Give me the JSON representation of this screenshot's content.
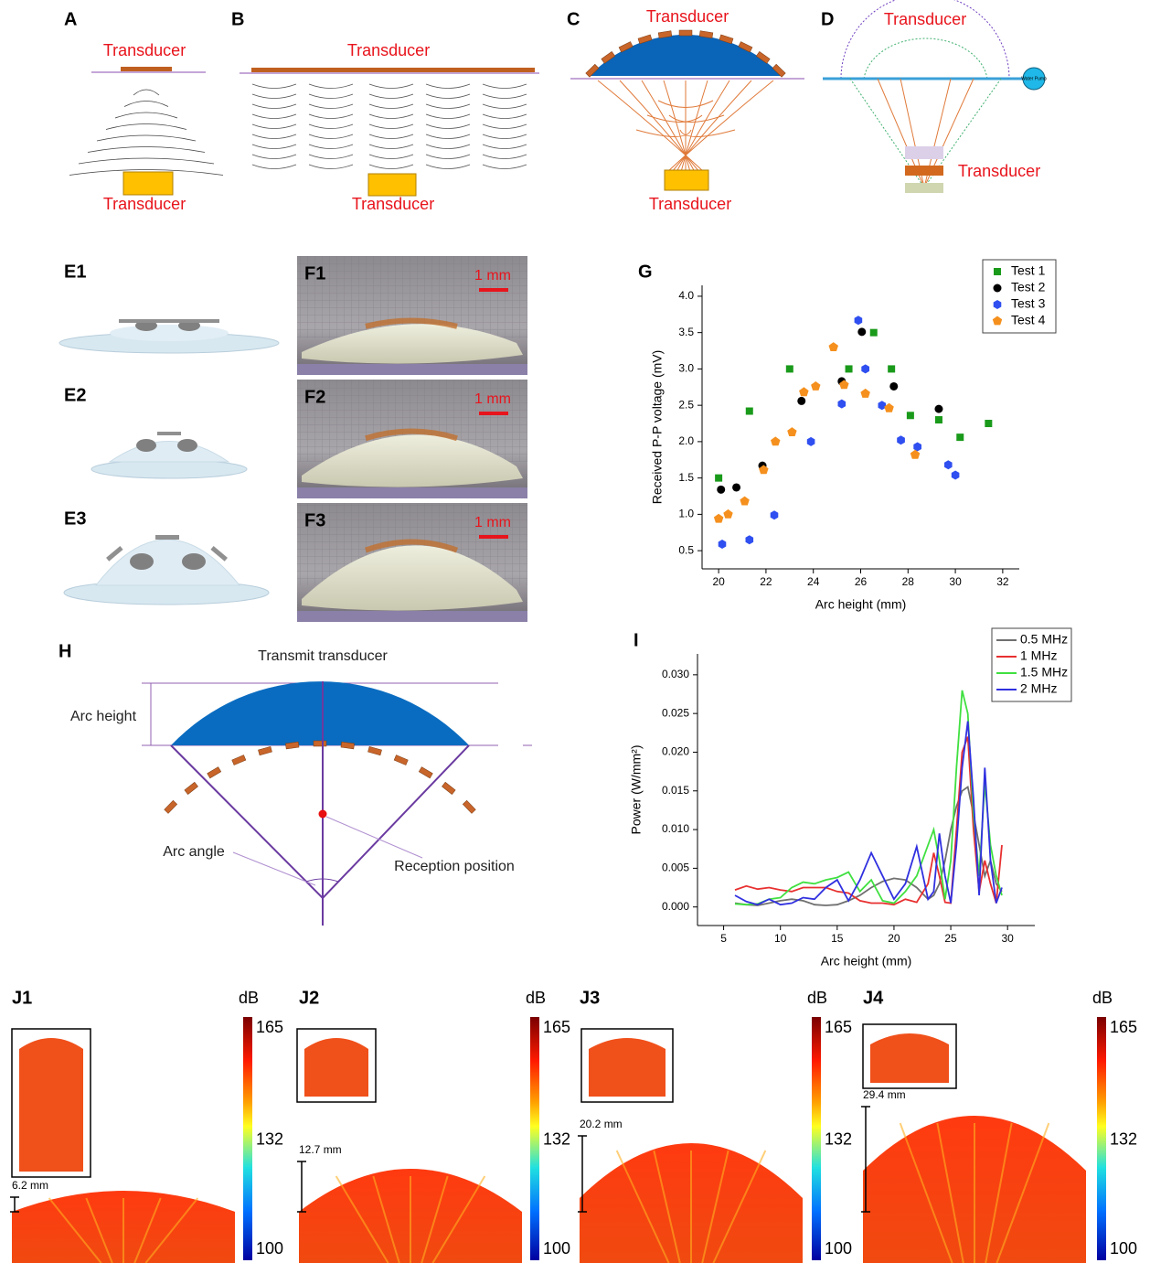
{
  "schematics": [
    {
      "label": "A",
      "top": "Transducer",
      "bottom": "Transducer"
    },
    {
      "label": "B",
      "top": "Transducer",
      "bottom": "Transducer"
    },
    {
      "label": "C",
      "top": "Transducer",
      "bottom": "Transducer"
    },
    {
      "label": "D",
      "top": "Transducer",
      "side": "Transducer",
      "pump": "Water Pump"
    }
  ],
  "models": [
    "E1",
    "E2",
    "E3"
  ],
  "photos": [
    {
      "label": "F1",
      "scale": "1 mm"
    },
    {
      "label": "F2",
      "scale": "1 mm"
    },
    {
      "label": "F3",
      "scale": "1 mm"
    }
  ],
  "diagram": {
    "label": "H",
    "title": "Transmit transducer",
    "arc_height": "Arc height",
    "arc_angle": "Arc angle",
    "reception": "Reception position"
  },
  "simulations": [
    {
      "label": "J1",
      "unit": "dB",
      "colorbar_ticks": [
        165,
        132,
        100
      ],
      "distance": "6.2 mm"
    },
    {
      "label": "J2",
      "unit": "dB",
      "colorbar_ticks": [
        165,
        132,
        100
      ],
      "distance": "12.7 mm"
    },
    {
      "label": "J3",
      "unit": "dB",
      "colorbar_ticks": [
        165,
        132,
        100
      ],
      "distance": "20.2 mm"
    },
    {
      "label": "J4",
      "unit": "dB",
      "colorbar_ticks": [
        165,
        132,
        100
      ],
      "distance": "29.4 mm"
    }
  ],
  "chart_data": [
    {
      "type": "scatter",
      "label": "G",
      "x_label": "Arc height (mm)",
      "y_label": "Received P-P voltage (mV)",
      "xlim": [
        19.3,
        32.7
      ],
      "ylim": [
        0.25,
        4.15
      ],
      "xticks": [
        20,
        22,
        24,
        26,
        28,
        30,
        32
      ],
      "yticks": [
        0.5,
        {
          "value": 1,
          "label": "1.0"
        },
        1.5,
        {
          "value": 2,
          "label": "2.0"
        },
        2.5,
        {
          "value": 3,
          "label": "3.0"
        },
        3.5,
        {
          "value": 4,
          "label": "4.0"
        }
      ],
      "legend": "upper right",
      "series": [
        {
          "name": "Test 1",
          "color": "#1a9a1a",
          "marker": "square",
          "x": [
            20.0,
            21.3,
            23.0,
            25.5,
            26.55,
            27.3,
            28.1,
            29.3,
            30.2,
            31.4
          ],
          "values": [
            1.5,
            2.42,
            3.0,
            3.0,
            3.5,
            3.0,
            2.36,
            2.3,
            2.06,
            2.25
          ]
        },
        {
          "name": "Test 2",
          "color": "#000000",
          "marker": "circle",
          "x": [
            20.1,
            20.75,
            21.85,
            23.5,
            25.2,
            26.05,
            27.4,
            29.3
          ],
          "values": [
            1.34,
            1.37,
            1.67,
            2.56,
            2.83,
            3.51,
            2.76,
            2.45
          ]
        },
        {
          "name": "Test 3",
          "color": "#2f4ff0",
          "marker": "hexagon",
          "x": [
            20.15,
            21.3,
            22.35,
            23.9,
            25.2,
            25.9,
            26.2,
            26.9,
            27.7,
            28.4,
            29.7,
            30.0
          ],
          "values": [
            0.59,
            0.65,
            0.99,
            2.0,
            2.52,
            3.67,
            3.0,
            2.5,
            2.02,
            1.93,
            1.68,
            1.54
          ]
        },
        {
          "name": "Test 4",
          "color": "#f5901e",
          "marker": "pentagon",
          "x": [
            20.0,
            20.4,
            21.1,
            21.9,
            22.4,
            23.1,
            23.6,
            24.1,
            24.85,
            25.3,
            26.2,
            27.2,
            28.3
          ],
          "values": [
            0.94,
            1.0,
            1.18,
            1.61,
            2.0,
            2.13,
            2.68,
            2.76,
            3.3,
            2.78,
            2.66,
            2.46,
            1.82
          ]
        }
      ]
    },
    {
      "type": "line",
      "label": "I",
      "x_label": "Arc height (mm)",
      "y_label": "Power (W/mm²)",
      "xlim": [
        2.7,
        32.4
      ],
      "ylim": [
        -0.0024,
        0.0327
      ],
      "xticks": [
        5,
        10,
        15,
        20,
        25,
        30
      ],
      "yticks": [
        {
          "value": 0,
          "label": "0.000"
        },
        {
          "value": 0.005,
          "label": "0.005"
        },
        {
          "value": 0.01,
          "label": "0.010"
        },
        {
          "value": 0.015,
          "label": "0.015"
        },
        {
          "value": 0.02,
          "label": "0.020"
        },
        {
          "value": 0.025,
          "label": "0.025"
        },
        {
          "value": 0.03,
          "label": "0.030"
        }
      ],
      "legend": "upper right",
      "x": [
        6,
        7,
        8,
        9,
        10,
        11,
        12,
        13,
        14,
        15,
        16,
        17,
        18,
        19,
        20,
        21,
        22,
        23,
        23.5,
        24,
        24.5,
        25,
        25.5,
        26,
        26.5,
        27,
        27.5,
        28,
        28.5,
        29,
        29.5
      ],
      "series": [
        {
          "name": "0.5 MHz",
          "color": "#707070",
          "values": [
            0.0005,
            0.0003,
            0.0002,
            0.0005,
            0.0008,
            0.001,
            0.0008,
            0.0003,
            0.0002,
            0.0003,
            0.0008,
            0.0015,
            0.0025,
            0.0033,
            0.0037,
            0.0035,
            0.0025,
            0.001,
            0.0015,
            0.003,
            0.006,
            0.01,
            0.013,
            0.015,
            0.0155,
            0.012,
            0.008,
            0.004,
            0.006,
            0.003,
            0.002
          ]
        },
        {
          "name": "1 MHz",
          "color": "#e83030",
          "values": [
            0.0022,
            0.0027,
            0.0023,
            0.0025,
            0.0022,
            0.002,
            0.0025,
            0.0025,
            0.0025,
            0.002,
            0.0018,
            0.0008,
            0.0005,
            0.0005,
            0.0003,
            0.001,
            0.0006,
            0.003,
            0.007,
            0.004,
            0.0006,
            0.0005,
            0.01,
            0.02,
            0.022,
            0.01,
            0.002,
            0.006,
            0.003,
            0.0005,
            0.008
          ]
        },
        {
          "name": "1.5 MHz",
          "color": "#40e040",
          "values": [
            0.0004,
            0.0003,
            0.0004,
            0.001,
            0.0012,
            0.0025,
            0.0032,
            0.003,
            0.0035,
            0.0038,
            0.0045,
            0.002,
            0.0035,
            0.0008,
            0.0005,
            0.002,
            0.004,
            0.008,
            0.01,
            0.006,
            0.001,
            0.006,
            0.018,
            0.028,
            0.025,
            0.012,
            0.004,
            0.016,
            0.008,
            0.004,
            0.0015
          ]
        },
        {
          "name": "2 MHz",
          "color": "#3030e0",
          "values": [
            0.0015,
            0.0007,
            0.0003,
            0.001,
            0.0003,
            0.0005,
            0.0012,
            0.001,
            0.0025,
            0.0035,
            0.0008,
            0.0035,
            0.007,
            0.004,
            0.001,
            0.003,
            0.0078,
            0.001,
            0.002,
            0.0095,
            0.004,
            0.0005,
            0.008,
            0.018,
            0.024,
            0.014,
            0.0015,
            0.018,
            0.006,
            0.0005,
            0.0025
          ]
        }
      ]
    }
  ]
}
